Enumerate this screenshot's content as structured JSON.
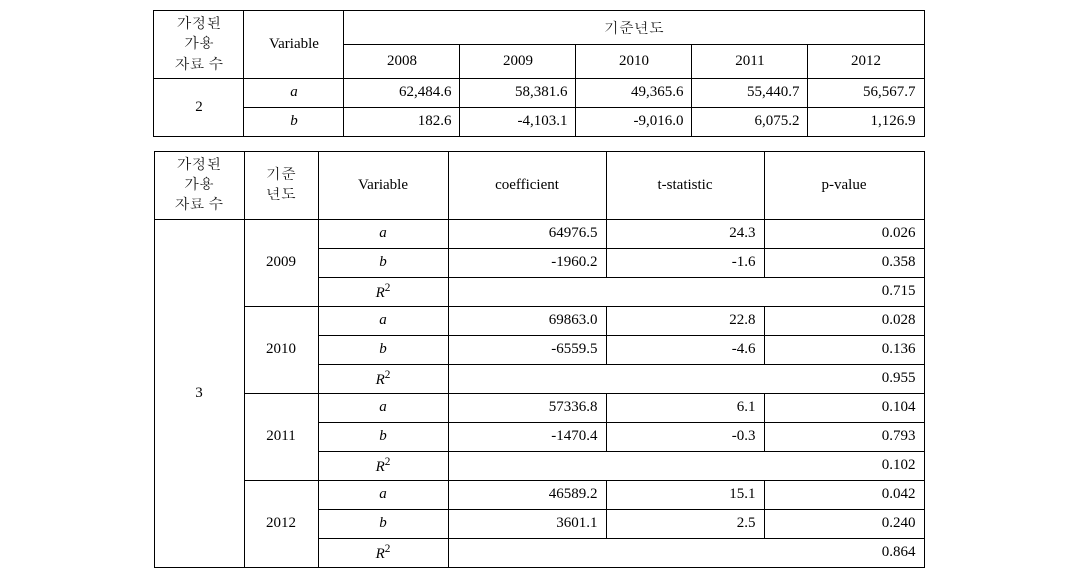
{
  "table1": {
    "header": {
      "col0": "가정된\n가용\n자료 수",
      "col1": "Variable",
      "group": "기준년도",
      "years": [
        "2008",
        "2009",
        "2010",
        "2011",
        "2012"
      ]
    },
    "row_group_value": "2",
    "rows": [
      {
        "var": "a",
        "vals": [
          "62,484.6",
          "58,381.6",
          "49,365.6",
          "55,440.7",
          "56,567.7"
        ]
      },
      {
        "var": "b",
        "vals": [
          "182.6",
          "-4,103.1",
          "-9,016.0",
          "6,075.2",
          "1,126.9"
        ]
      }
    ]
  },
  "table2": {
    "header": {
      "col0": "가정된\n가용\n자료 수",
      "col1": "기준\n년도",
      "c2": "Variable",
      "c3": "coefficient",
      "c4": "t-statistic",
      "c5": "p-value"
    },
    "row_group_value": "3",
    "r2_html": "R<sup>2</sup>",
    "years": [
      {
        "year": "2009",
        "r": [
          {
            "var": "a",
            "coef": "64976.5",
            "t": "24.3",
            "p": "0.026"
          },
          {
            "var": "b",
            "coef": "-1960.2",
            "t": "-1.6",
            "p": "0.358"
          }
        ],
        "r2": "0.715"
      },
      {
        "year": "2010",
        "r": [
          {
            "var": "a",
            "coef": "69863.0",
            "t": "22.8",
            "p": "0.028"
          },
          {
            "var": "b",
            "coef": "-6559.5",
            "t": "-4.6",
            "p": "0.136"
          }
        ],
        "r2": "0.955"
      },
      {
        "year": "2011",
        "r": [
          {
            "var": "a",
            "coef": "57336.8",
            "t": "6.1",
            "p": "0.104"
          },
          {
            "var": "b",
            "coef": "-1470.4",
            "t": "-0.3",
            "p": "0.793"
          }
        ],
        "r2": "0.102"
      },
      {
        "year": "2012",
        "r": [
          {
            "var": "a",
            "coef": "46589.2",
            "t": "15.1",
            "p": "0.042"
          },
          {
            "var": "b",
            "coef": "3601.1",
            "t": "2.5",
            "p": "0.240"
          }
        ],
        "r2": "0.864"
      }
    ]
  }
}
